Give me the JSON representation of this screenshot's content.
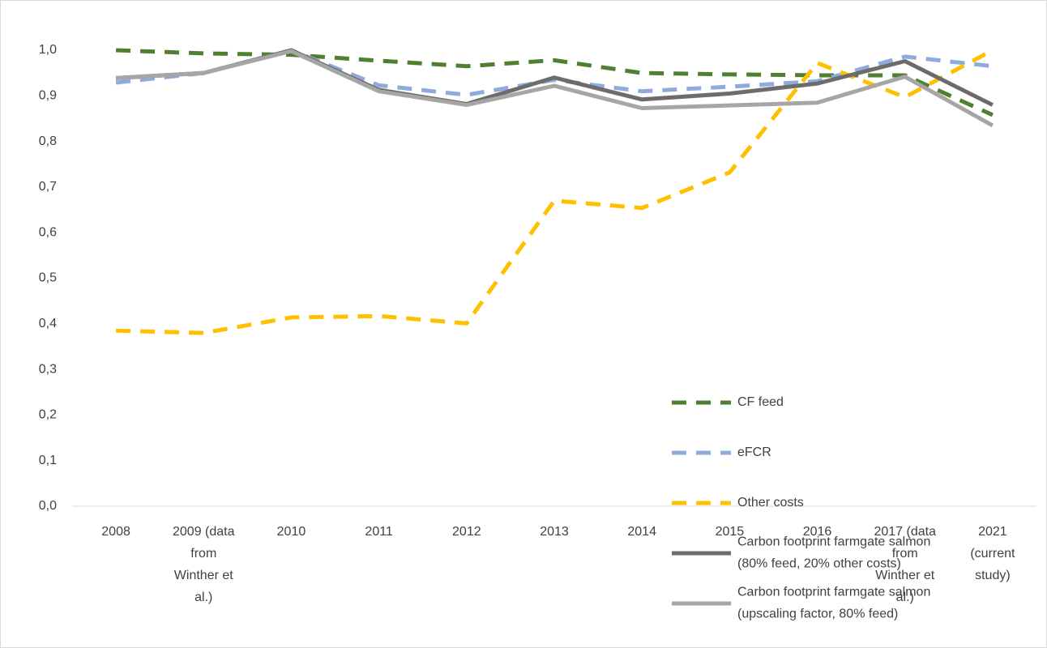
{
  "chart_data": {
    "type": "line",
    "categories": [
      "2008",
      "2009 (data from Winther et al.)",
      "2010",
      "2011",
      "2012",
      "2013",
      "2014",
      "2015",
      "2016",
      "2017 (data from Winther et al.)",
      "2021 (current study)"
    ],
    "series": [
      {
        "name": "CF feed",
        "color": "#4f7f30",
        "dash": true,
        "values": [
          1.0,
          0.993,
          0.99,
          0.977,
          0.965,
          0.978,
          0.95,
          0.947,
          0.945,
          0.945,
          0.858
        ]
      },
      {
        "name": "eFCR",
        "color": "#8faadc",
        "dash": true,
        "values": [
          0.929,
          0.95,
          1.0,
          0.923,
          0.902,
          0.935,
          0.91,
          0.92,
          0.932,
          0.986,
          0.965
        ]
      },
      {
        "name": "Other costs",
        "color": "#ffc000",
        "dash": true,
        "values": [
          0.385,
          0.38,
          0.414,
          0.417,
          0.401,
          0.67,
          0.654,
          0.732,
          0.972,
          0.897,
          1.0
        ]
      },
      {
        "name": "Carbon footprint farmgate salmon (80% feed, 20% other costs)",
        "color": "#6e6b6b",
        "dash": false,
        "values": [
          0.939,
          0.95,
          1.0,
          0.913,
          0.882,
          0.94,
          0.892,
          0.905,
          0.927,
          0.976,
          0.88
        ]
      },
      {
        "name": "Carbon footprint farmgate salmon (upscaling factor, 80% feed)",
        "color": "#a6a6a6",
        "dash": false,
        "values": [
          0.939,
          0.95,
          0.998,
          0.91,
          0.88,
          0.922,
          0.873,
          0.879,
          0.885,
          0.942,
          0.835
        ]
      }
    ],
    "ylim": [
      0,
      1.0
    ],
    "yticks": [
      {
        "value": 0,
        "label": "0,0"
      },
      {
        "value": 0.1,
        "label": "0,1"
      },
      {
        "value": 0.2,
        "label": "0,2"
      },
      {
        "value": 0.3,
        "label": "0,3"
      },
      {
        "value": 0.4,
        "label": "0,4"
      },
      {
        "value": 0.5,
        "label": "0,5"
      },
      {
        "value": 0.6,
        "label": "0,6"
      },
      {
        "value": 0.7,
        "label": "0,7"
      },
      {
        "value": 0.8,
        "label": "0,8"
      },
      {
        "value": 0.9,
        "label": "0,9"
      },
      {
        "value": 1.0,
        "label": "1,0"
      }
    ],
    "grid": false
  }
}
